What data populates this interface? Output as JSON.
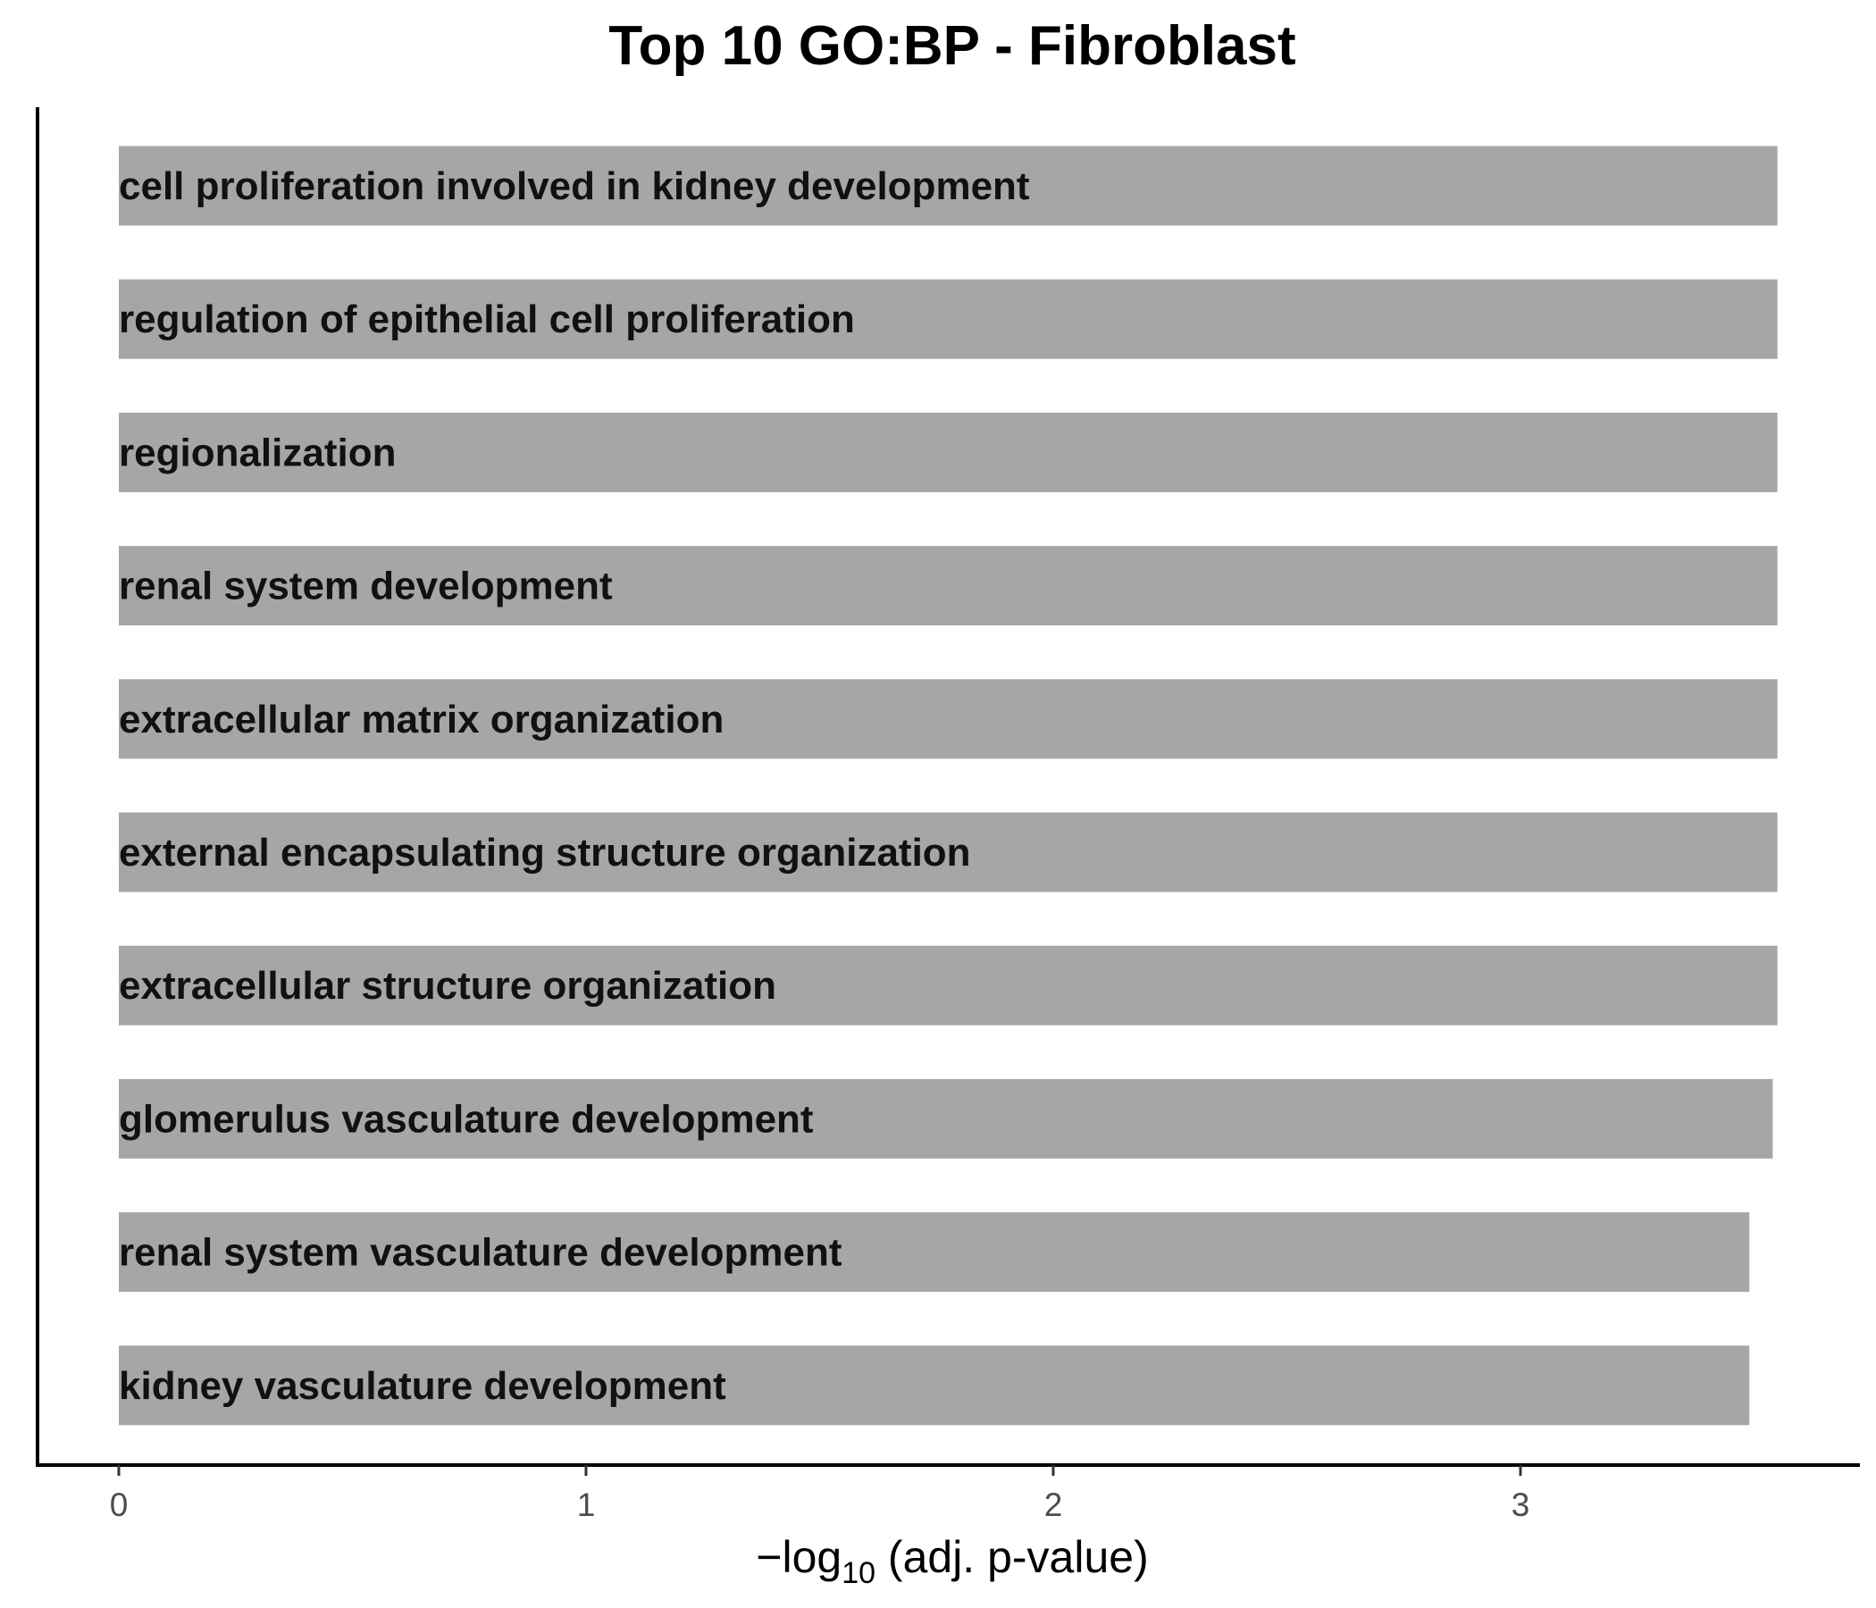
{
  "chart_data": {
    "type": "bar",
    "orientation": "horizontal",
    "title": "Top 10 GO:BP - Fibroblast",
    "xlabel": "−log10 (adj. p-value)",
    "xlabel_parts": {
      "prefix": "−log",
      "subscript": "10",
      "suffix": " (adj. p-value)"
    },
    "ylabel": "",
    "categories": [
      "cell proliferation involved in kidney development",
      "regulation of epithelial cell proliferation",
      "regionalization",
      "renal system development",
      "extracellular matrix organization",
      "external encapsulating structure organization",
      "extracellular structure organization",
      "glomerulus vasculature development",
      "renal system vasculature development",
      "kidney vasculature development"
    ],
    "values": [
      3.55,
      3.55,
      3.55,
      3.55,
      3.55,
      3.55,
      3.55,
      3.54,
      3.49,
      3.49
    ],
    "xlim": [
      -0.17,
      3.73
    ],
    "xticks": [
      0,
      1,
      2,
      3
    ],
    "xtick_labels": [
      "0",
      "1",
      "2",
      "3"
    ],
    "grid": false,
    "legend": "none",
    "bar_color": "#a6a6a6",
    "label_color": "#111111"
  }
}
